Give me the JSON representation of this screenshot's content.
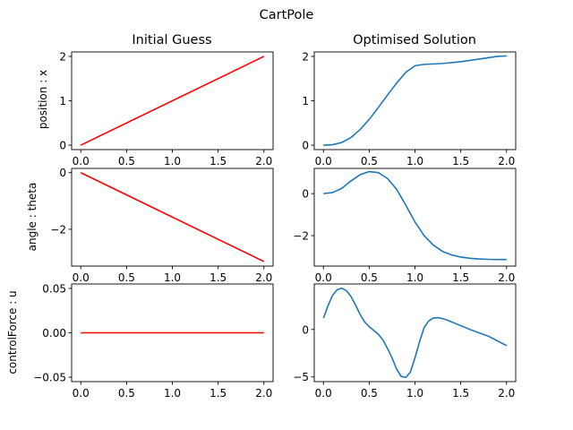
{
  "chart_data": {
    "title": "CartPole",
    "column_titles": [
      "Initial Guess",
      "Optimised Solution"
    ],
    "row_ylabels": [
      "position : x",
      "angle : theta",
      "controlForce : u"
    ],
    "x_ticks": [
      "0.0",
      "0.5",
      "1.0",
      "1.5",
      "2.0"
    ],
    "colors": {
      "initial": "#ff0000",
      "optimised": "#1f77b4"
    },
    "grid": false,
    "subplots": [
      {
        "type": "line",
        "row": 0,
        "col": 0,
        "xlim": [
          -0.1,
          2.1
        ],
        "ylim": [
          -0.1,
          2.1
        ],
        "yticks": [
          {
            "v": 0,
            "label": "0"
          },
          {
            "v": 1,
            "label": "1"
          },
          {
            "v": 2,
            "label": "2"
          }
        ],
        "series": [
          {
            "color_key": "initial",
            "x": [
              0.0,
              2.0
            ],
            "y": [
              0.0,
              2.0
            ]
          }
        ]
      },
      {
        "type": "line",
        "row": 0,
        "col": 1,
        "xlim": [
          -0.1,
          2.1
        ],
        "ylim": [
          -0.1,
          2.1
        ],
        "yticks": [
          {
            "v": 0,
            "label": "0"
          },
          {
            "v": 1,
            "label": "1"
          },
          {
            "v": 2,
            "label": "2"
          }
        ],
        "series": [
          {
            "color_key": "optimised",
            "x": [
              0.0,
              0.1,
              0.2,
              0.3,
              0.4,
              0.5,
              0.6,
              0.7,
              0.8,
              0.9,
              1.0,
              1.1,
              1.2,
              1.3,
              1.4,
              1.5,
              1.6,
              1.7,
              1.8,
              1.9,
              2.0
            ],
            "y": [
              0.0,
              0.01,
              0.06,
              0.17,
              0.35,
              0.58,
              0.85,
              1.13,
              1.4,
              1.64,
              1.79,
              1.82,
              1.83,
              1.84,
              1.86,
              1.88,
              1.91,
              1.94,
              1.97,
              2.0,
              2.01
            ]
          }
        ]
      },
      {
        "type": "line",
        "row": 1,
        "col": 0,
        "xlim": [
          -0.1,
          2.1
        ],
        "ylim": [
          -3.3,
          0.15
        ],
        "yticks": [
          {
            "v": 0,
            "label": "0"
          },
          {
            "v": -2,
            "label": "−2"
          }
        ],
        "series": [
          {
            "color_key": "initial",
            "x": [
              0.0,
              2.0
            ],
            "y": [
              0.0,
              -3.14
            ]
          }
        ]
      },
      {
        "type": "line",
        "row": 1,
        "col": 1,
        "xlim": [
          -0.1,
          2.1
        ],
        "ylim": [
          -3.45,
          1.2
        ],
        "yticks": [
          {
            "v": 0,
            "label": "0"
          },
          {
            "v": -2,
            "label": "−2"
          }
        ],
        "series": [
          {
            "color_key": "optimised",
            "x": [
              0.0,
              0.1,
              0.2,
              0.3,
              0.4,
              0.5,
              0.6,
              0.7,
              0.8,
              0.9,
              1.0,
              1.1,
              1.2,
              1.3,
              1.4,
              1.5,
              1.6,
              1.7,
              1.8,
              1.9,
              2.0
            ],
            "y": [
              0.0,
              0.05,
              0.25,
              0.6,
              0.9,
              1.05,
              1.0,
              0.72,
              0.2,
              -0.55,
              -1.35,
              -2.0,
              -2.45,
              -2.75,
              -2.92,
              -3.02,
              -3.08,
              -3.11,
              -3.13,
              -3.14,
              -3.14
            ]
          }
        ]
      },
      {
        "type": "line",
        "row": 2,
        "col": 0,
        "xlim": [
          -0.1,
          2.1
        ],
        "ylim": [
          -0.055,
          0.055
        ],
        "yticks": [
          {
            "v": 0.05,
            "label": "0.05"
          },
          {
            "v": 0,
            "label": "0.00"
          },
          {
            "v": -0.05,
            "label": "−0.05"
          }
        ],
        "series": [
          {
            "color_key": "initial",
            "x": [
              0.0,
              2.0
            ],
            "y": [
              0.0,
              0.0
            ]
          }
        ]
      },
      {
        "type": "line",
        "row": 2,
        "col": 1,
        "xlim": [
          -0.1,
          2.1
        ],
        "ylim": [
          -5.5,
          4.8
        ],
        "yticks": [
          {
            "v": 0,
            "label": "0"
          },
          {
            "v": -5,
            "label": "−5"
          }
        ],
        "series": [
          {
            "color_key": "optimised",
            "x": [
              0.0,
              0.05,
              0.1,
              0.15,
              0.2,
              0.25,
              0.3,
              0.35,
              0.4,
              0.45,
              0.5,
              0.55,
              0.6,
              0.65,
              0.7,
              0.75,
              0.8,
              0.85,
              0.9,
              0.95,
              1.0,
              1.05,
              1.1,
              1.15,
              1.2,
              1.25,
              1.3,
              1.35,
              1.4,
              1.5,
              1.6,
              1.7,
              1.8,
              1.9,
              2.0
            ],
            "y": [
              1.2,
              2.5,
              3.6,
              4.2,
              4.35,
              4.1,
              3.5,
              2.6,
              1.6,
              0.8,
              0.3,
              -0.1,
              -0.5,
              -1.1,
              -2.0,
              -3.0,
              -4.2,
              -4.95,
              -5.05,
              -4.5,
              -3.0,
              -1.3,
              0.2,
              0.9,
              1.2,
              1.25,
              1.15,
              1.0,
              0.8,
              0.4,
              0.0,
              -0.35,
              -0.7,
              -1.2,
              -1.7
            ]
          }
        ]
      }
    ]
  }
}
